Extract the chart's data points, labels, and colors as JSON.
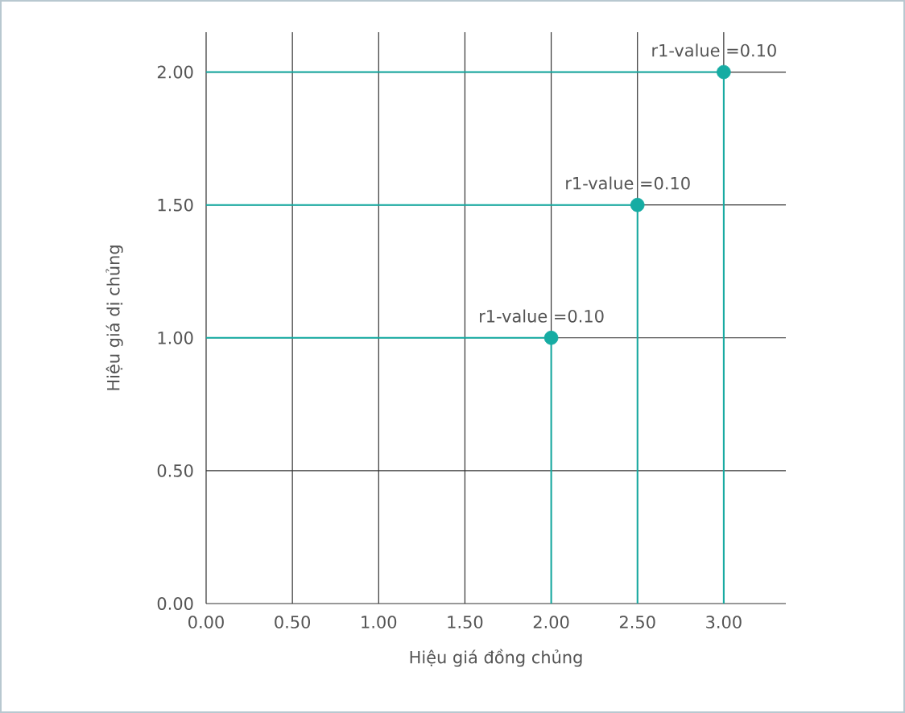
{
  "chart_data": {
    "type": "scatter",
    "xlabel": "Hiệu giá đồng chủng",
    "ylabel": "Hiệu giá dị chủng",
    "xlim": [
      0,
      3.36
    ],
    "ylim": [
      0,
      2.15
    ],
    "xticks": [
      {
        "value": 0,
        "label": "0.00"
      },
      {
        "value": 0.5,
        "label": "0.50"
      },
      {
        "value": 1,
        "label": "1.00"
      },
      {
        "value": 1.5,
        "label": "1.50"
      },
      {
        "value": 2,
        "label": "2.00"
      },
      {
        "value": 2.5,
        "label": "2.50"
      },
      {
        "value": 3,
        "label": "3.00"
      }
    ],
    "yticks": [
      {
        "value": 0,
        "label": "0.00"
      },
      {
        "value": 0.5,
        "label": "0.50"
      },
      {
        "value": 1,
        "label": "1.00"
      },
      {
        "value": 1.5,
        "label": "1.50"
      },
      {
        "value": 2,
        "label": "2.00"
      }
    ],
    "grid": true,
    "series": [
      {
        "type": "line",
        "marker": "none",
        "color": "#16aca3",
        "x": [
          0,
          2,
          2
        ],
        "values": [
          1,
          1,
          0
        ]
      },
      {
        "type": "line",
        "marker": "none",
        "color": "#16aca3",
        "x": [
          0,
          2.5,
          2.5
        ],
        "values": [
          1.5,
          1.5,
          0
        ]
      },
      {
        "type": "line",
        "marker": "none",
        "color": "#16aca3",
        "x": [
          0,
          3,
          3
        ],
        "values": [
          2,
          2,
          0
        ]
      },
      {
        "marker": "circle",
        "color": "#16aca3",
        "x": [
          2,
          2.5,
          3
        ],
        "values": [
          1,
          1.5,
          2
        ]
      }
    ],
    "annotations": [
      {
        "text": "r1-value =0.10",
        "x": 2,
        "y": 1
      },
      {
        "text": "r1-value =0.10",
        "x": 2.5,
        "y": 1.5
      },
      {
        "text": "r1-value =0.10",
        "x": 3,
        "y": 2
      }
    ]
  }
}
